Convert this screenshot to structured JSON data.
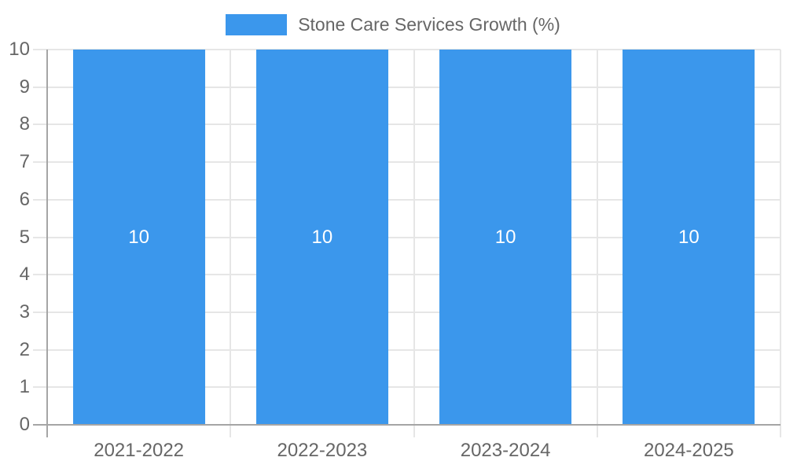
{
  "chart_data": {
    "type": "bar",
    "title": "Stone Care Services Growth (%)",
    "categories": [
      "2021-2022",
      "2022-2023",
      "2023-2024",
      "2024-2025"
    ],
    "series": [
      {
        "name": "Stone Care Services Growth (%)",
        "values": [
          10,
          10,
          10,
          10
        ],
        "color": "#3b97ec"
      }
    ],
    "bar_value_labels": [
      "10",
      "10",
      "10",
      "10"
    ],
    "xlabel": "",
    "ylabel": "",
    "ylim": [
      0,
      10
    ],
    "y_ticks": [
      0,
      1,
      2,
      3,
      4,
      5,
      6,
      7,
      8,
      9,
      10
    ],
    "grid": true,
    "legend": {
      "position": "top"
    },
    "colors": {
      "bar": "#3b97ec",
      "grid_line": "#e6e6e6",
      "axis_line": "#a5a5a5",
      "tick_text": "#666666",
      "bar_label_text": "#ffffff",
      "background": "#ffffff"
    }
  }
}
